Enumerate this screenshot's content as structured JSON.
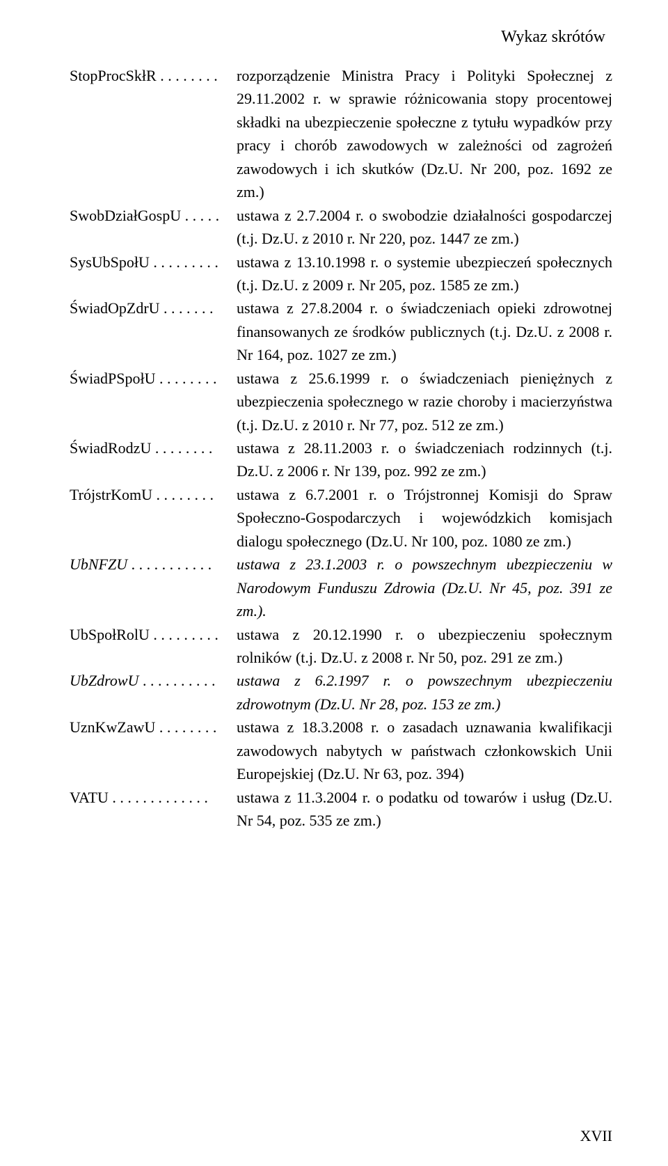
{
  "header": "Wykaz skrótów",
  "page_number": "XVII",
  "entries": [
    {
      "abbr": "StopProcSkłR",
      "dots": " . . . . . . . . ",
      "def": "rozporządzenie Ministra Pracy i Polityki Społecznej z 29.11.2002 r. w sprawie różnicowania stopy procentowej składki na ubezpieczenie społeczne z tytułu wypadków przy pracy i chorób zawodowych w zależności od zagrożeń zawodowych i ich skutków (Dz.U. Nr 200, poz. 1692 ze zm.)",
      "italic": false
    },
    {
      "abbr": "SwobDziałGospU",
      "dots": " . . . . . ",
      "def": "ustawa z 2.7.2004 r. o swobodzie działalności gospodarczej (t.j. Dz.U. z 2010 r. Nr 220, poz. 1447 ze zm.)",
      "italic": false
    },
    {
      "abbr": "SysUbSpołU",
      "dots": " . . . . . . . . . ",
      "def": "ustawa z 13.10.1998 r. o systemie ubezpieczeń społecznych (t.j. Dz.U. z 2009 r. Nr 205, poz. 1585 ze zm.)",
      "italic": false
    },
    {
      "abbr": "ŚwiadOpZdrU",
      "dots": " . . . . . . . ",
      "def": "ustawa z 27.8.2004 r. o świadczeniach opieki zdrowotnej finansowanych ze środków publicznych (t.j. Dz.U. z 2008 r. Nr 164, poz. 1027 ze zm.)",
      "italic": false
    },
    {
      "abbr": "ŚwiadPSpołU",
      "dots": " . . . . . . . . ",
      "def": "ustawa z 25.6.1999 r. o świadczeniach pieniężnych z ubezpieczenia społecznego w razie choroby i macierzyństwa (t.j. Dz.U. z 2010 r. Nr 77, poz. 512 ze zm.)",
      "italic": false
    },
    {
      "abbr": "ŚwiadRodzU",
      "dots": "  . . . . . . . . ",
      "def": "ustawa z 28.11.2003 r. o świadczeniach rodzinnych (t.j. Dz.U. z 2006 r. Nr 139, poz. 992 ze zm.)",
      "italic": false
    },
    {
      "abbr": "TrójstrKomU",
      "dots": " . . . . . . . . ",
      "def": "ustawa z 6.7.2001 r. o Trójstronnej Komisji do Spraw Społeczno-Gospodarczych i wojewódzkich komisjach dialogu społecznego (Dz.U. Nr 100, poz. 1080 ze zm.)",
      "italic": false
    },
    {
      "abbr": "UbNFZU",
      "dots": "  . . . . . . . . . . . ",
      "def": "ustawa z 23.1.2003 r. o powszechnym ubezpieczeniu w Narodowym Funduszu Zdrowia (Dz.U. Nr 45, poz. 391 ze zm.).",
      "italic": true
    },
    {
      "abbr": "UbSpołRolU",
      "dots": " . . . . . . . . . ",
      "def": "ustawa z 20.12.1990 r. o ubezpieczeniu społecznym rolników (t.j. Dz.U. z 2008 r. Nr 50, poz. 291 ze zm.)",
      "italic": false
    },
    {
      "abbr": "UbZdrowU",
      "dots": " . . . . . . . . . . ",
      "def": "ustawa z 6.2.1997 r. o powszechnym ubezpieczeniu zdrowotnym (Dz.U. Nr 28, poz. 153 ze zm.)",
      "italic": true
    },
    {
      "abbr": "UznKwZawU",
      "dots": " . . . . . . . . ",
      "def": "ustawa z 18.3.2008 r. o zasadach uznawania kwalifikacji zawodowych nabytych w państwach członkowskich Unii Europejskiej (Dz.U. Nr 63, poz. 394)",
      "italic": false
    },
    {
      "abbr": "VATU",
      "dots": "  . . . . . . . . . . . . . ",
      "def": "ustawa z 11.3.2004 r. o podatku od towarów i usług (Dz.U. Nr 54, poz. 535 ze zm.)",
      "italic": false
    }
  ]
}
